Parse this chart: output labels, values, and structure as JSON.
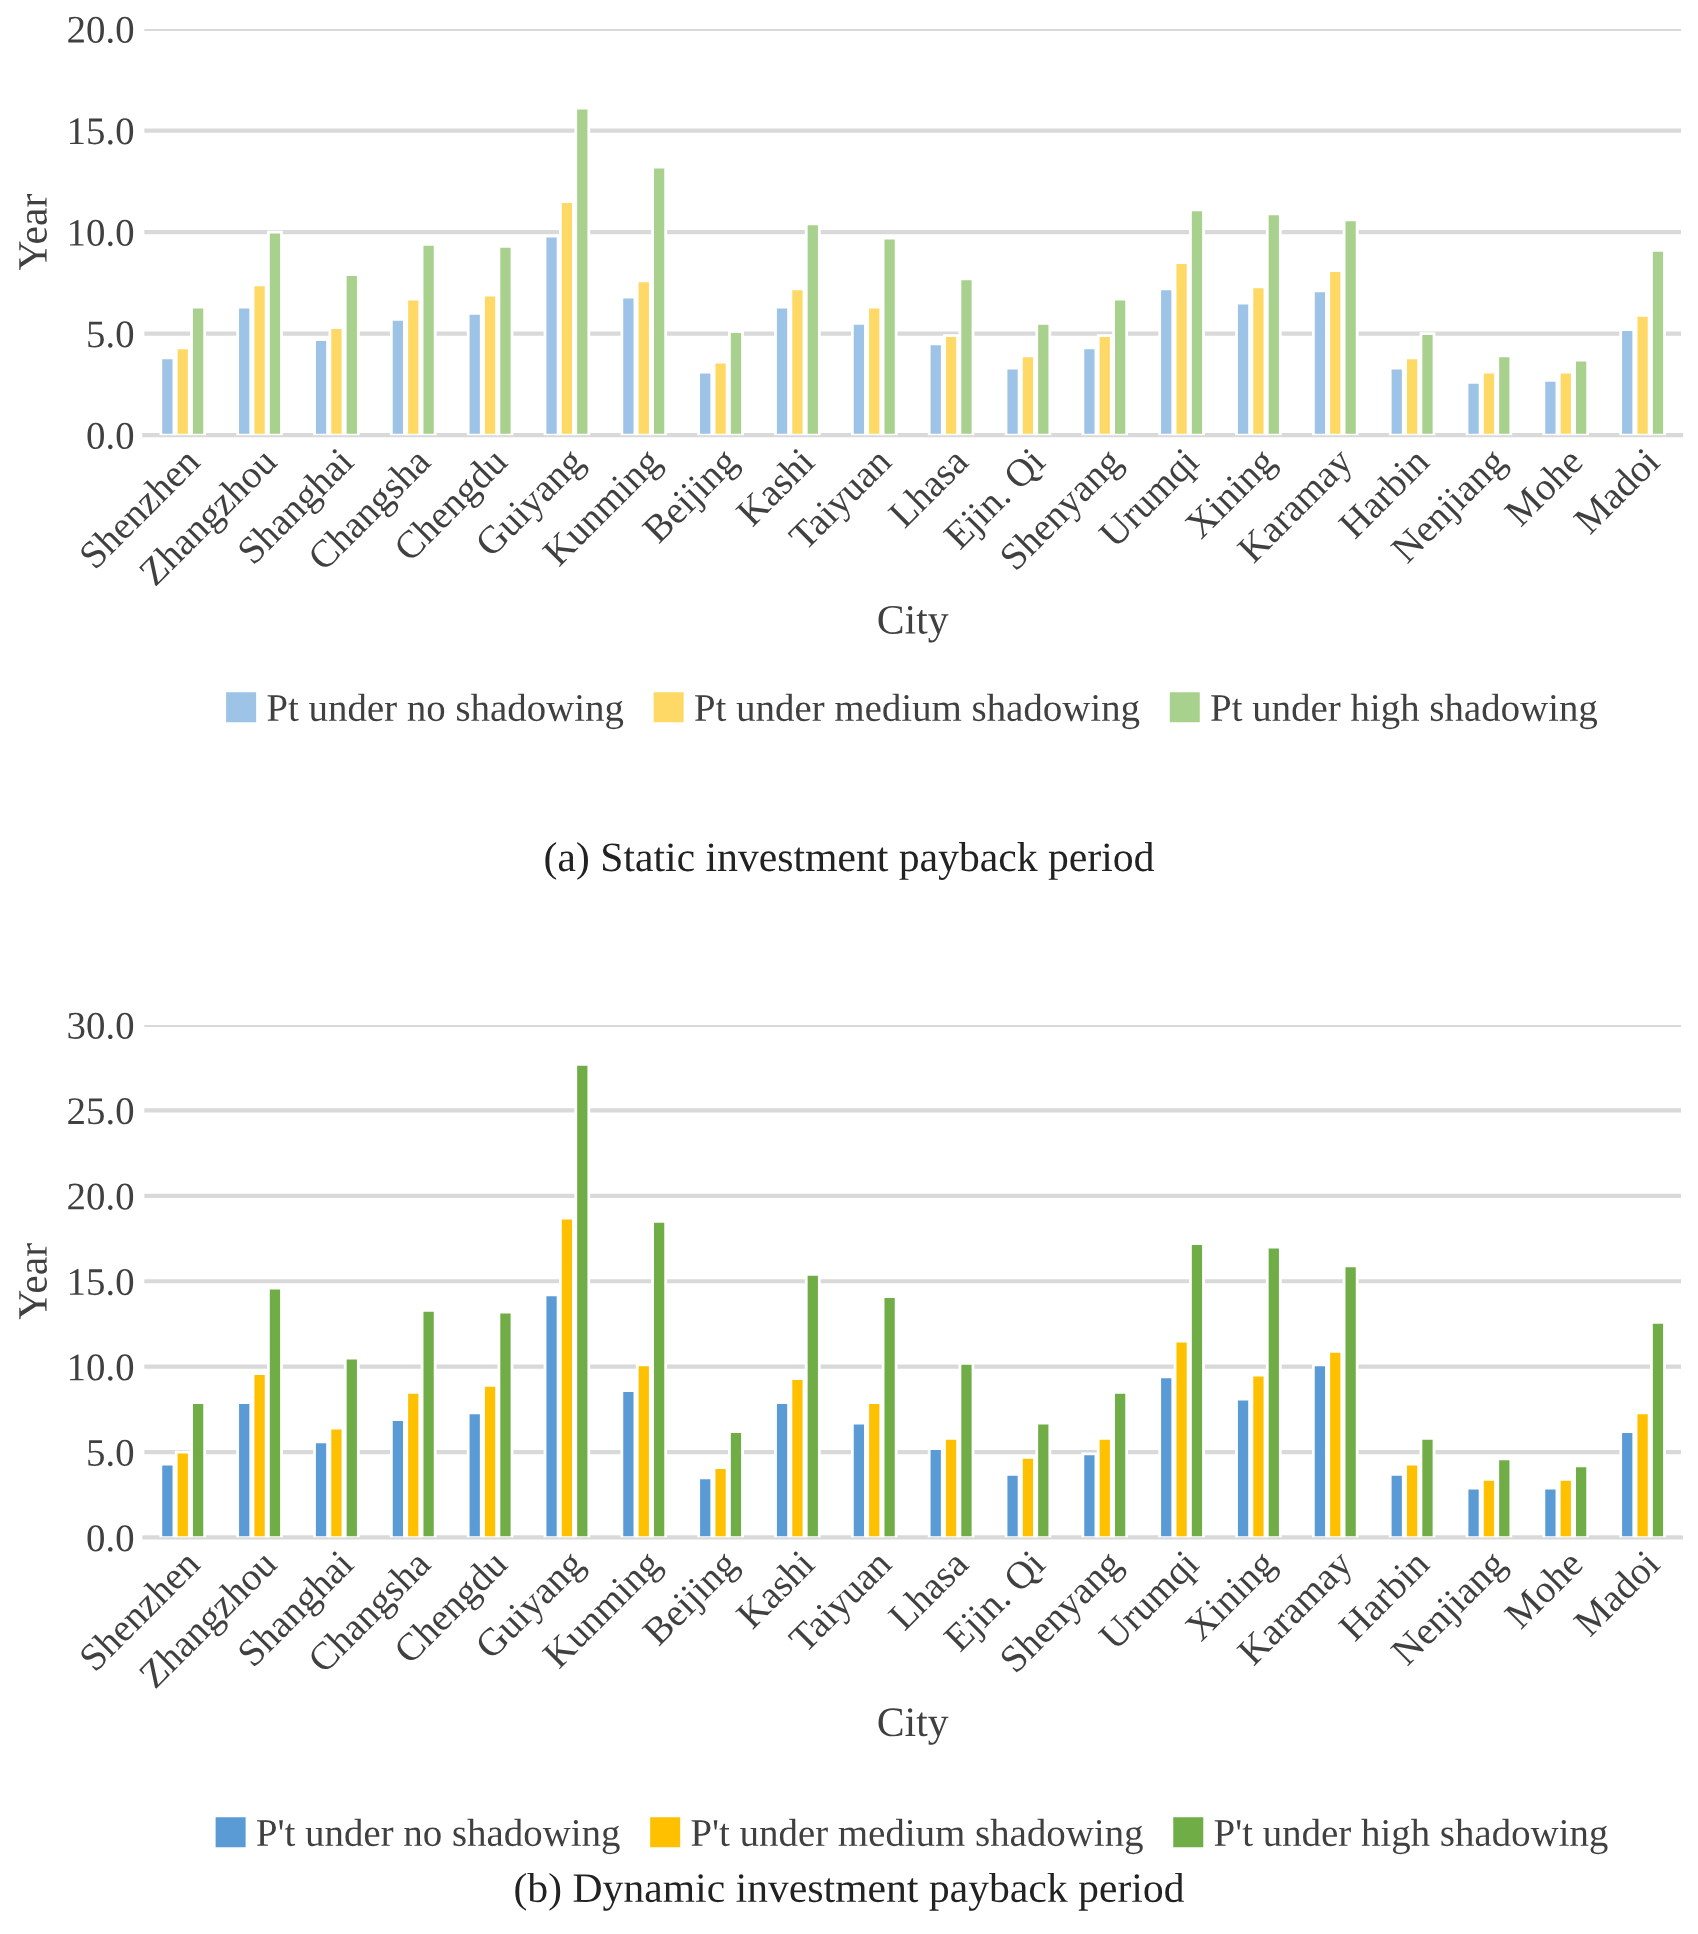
{
  "chart_data": [
    {
      "type": "bar",
      "xlabel": "City",
      "ylabel": "Year",
      "categories": [
        "Shenzhen",
        "Zhangzhou",
        "Shanghai",
        "Changsha",
        "Chengdu",
        "Guiyang",
        "Kunming",
        "Beijing",
        "Kashi",
        "Taiyuan",
        "Lhasa",
        "Ejin. Qi",
        "Shenyang",
        "Urumqi",
        "Xining",
        "Karamay",
        "Harbin",
        "Nenjiang",
        "Mohe",
        "Madoi"
      ],
      "series": [
        {
          "name": "Pt under no shadowing",
          "color": "#9dc3e6",
          "values": [
            3.8,
            6.3,
            4.7,
            5.7,
            6.0,
            9.8,
            6.8,
            3.1,
            6.3,
            5.5,
            4.5,
            3.3,
            4.3,
            7.2,
            6.5,
            7.1,
            3.3,
            2.6,
            2.7,
            5.2
          ]
        },
        {
          "name": "Pt under medium shadowing",
          "color": "#ffd966",
          "values": [
            4.3,
            7.4,
            5.3,
            6.7,
            6.9,
            11.5,
            7.6,
            3.6,
            7.2,
            6.3,
            4.9,
            3.9,
            4.9,
            8.5,
            7.3,
            8.1,
            3.8,
            3.1,
            3.1,
            5.9
          ]
        },
        {
          "name": "Pt under high shadowing",
          "color": "#a9d18e",
          "values": [
            6.3,
            10.0,
            7.9,
            9.4,
            9.3,
            16.1,
            13.2,
            5.1,
            10.4,
            9.7,
            7.7,
            5.5,
            6.7,
            11.1,
            10.9,
            10.6,
            5.0,
            3.9,
            3.7,
            9.1
          ]
        }
      ],
      "ylim": [
        0,
        20
      ],
      "yticks": [
        {
          "value": 0,
          "label": "0.0"
        },
        {
          "value": 5,
          "label": "5.0"
        },
        {
          "value": 10,
          "label": "10.0"
        },
        {
          "value": 15,
          "label": "15.0"
        },
        {
          "value": 20,
          "label": "20.0"
        }
      ],
      "grid": "y",
      "legend": "bottom",
      "annotations": [
        "(a) Static investment payback period"
      ]
    },
    {
      "type": "bar",
      "xlabel": "City",
      "ylabel": "Year",
      "categories": [
        "Shenzhen",
        "Zhangzhou",
        "Shanghai",
        "Changsha",
        "Chengdu",
        "Guiyang",
        "Kunming",
        "Beijing",
        "Kashi",
        "Taiyuan",
        "Lhasa",
        "Ejin. Qi",
        "Shenyang",
        "Urumqi",
        "Xining",
        "Karamay",
        "Harbin",
        "Nenjiang",
        "Mohe",
        "Madoi"
      ],
      "series": [
        {
          "name": "P't under no shadowing",
          "color": "#5b9bd5",
          "values": [
            4.3,
            7.9,
            5.6,
            6.9,
            7.3,
            14.2,
            8.6,
            3.5,
            7.9,
            6.7,
            5.2,
            3.7,
            4.9,
            9.4,
            8.1,
            10.1,
            3.7,
            2.9,
            2.9,
            6.2
          ]
        },
        {
          "name": "P't under medium shadowing",
          "color": "#ffc000",
          "values": [
            5.0,
            9.6,
            6.4,
            8.5,
            8.9,
            18.7,
            10.1,
            4.1,
            9.3,
            7.9,
            5.8,
            4.7,
            5.8,
            11.5,
            9.5,
            10.9,
            4.3,
            3.4,
            3.4,
            7.3
          ]
        },
        {
          "name": "P't under high shadowing",
          "color": "#70ad47",
          "values": [
            7.9,
            14.6,
            10.5,
            13.3,
            13.2,
            27.7,
            18.5,
            6.2,
            15.4,
            14.1,
            10.2,
            6.7,
            8.5,
            17.2,
            17.0,
            15.9,
            5.8,
            4.6,
            4.2,
            12.6
          ]
        }
      ],
      "ylim": [
        0,
        30
      ],
      "yticks": [
        {
          "value": 0,
          "label": "0.0"
        },
        {
          "value": 5,
          "label": "5.0"
        },
        {
          "value": 10,
          "label": "10.0"
        },
        {
          "value": 15,
          "label": "15.0"
        },
        {
          "value": 20,
          "label": "20.0"
        },
        {
          "value": 25,
          "label": "25.0"
        },
        {
          "value": 30,
          "label": "30.0"
        }
      ],
      "grid": "y",
      "legend": "bottom",
      "annotations": [
        "(b) Dynamic investment payback period"
      ]
    }
  ]
}
